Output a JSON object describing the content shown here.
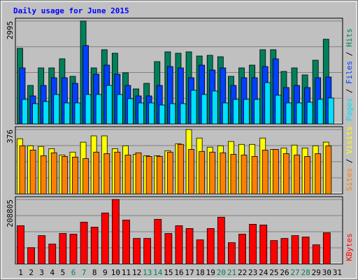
{
  "chart_data": [
    {
      "type": "bar",
      "title": "Daily usage for June 2015",
      "legend_separator": " / ",
      "ylim": [
        0,
        2995
      ],
      "yticks": [
        2995
      ],
      "series": [
        {
          "name": "Hits",
          "color": "#00805c",
          "values": [
            2200,
            1120,
            1630,
            1630,
            1895,
            1385,
            2995,
            1630,
            2160,
            2057,
            1487,
            1019,
            1181,
            1813,
            2098,
            2057,
            2098,
            1976,
            1996,
            1955,
            1385,
            1630,
            1711,
            2160,
            2160,
            1528,
            1630,
            1426,
            1854,
            2465,
            null
          ]
        },
        {
          "name": "Files",
          "color": "#0040ff",
          "values": [
            1630,
            815,
            1120,
            1344,
            1344,
            1181,
            2281,
            1446,
            1711,
            1446,
            1120,
            815,
            815,
            1120,
            1670,
            1630,
            1344,
            1711,
            1568,
            1630,
            1120,
            1344,
            1344,
            1670,
            1894,
            1059,
            1120,
            1059,
            1344,
            1365,
            null
          ]
        },
        {
          "name": "Pages",
          "color": "#00e0ff",
          "values": [
            713,
            590,
            652,
            856,
            611,
            611,
            856,
            856,
            1120,
            856,
            733,
            611,
            611,
            550,
            590,
            590,
            978,
            856,
            958,
            611,
            713,
            713,
            713,
            1202,
            835,
            611,
            611,
            631,
            713,
            754,
            null
          ]
        }
      ]
    },
    {
      "type": "bar",
      "legend_separator": " / ",
      "ylim": [
        0,
        376
      ],
      "yticks": [
        376
      ],
      "series": [
        {
          "name": "Visits",
          "color": "#ffff00",
          "values": [
            322,
            281,
            277,
            264,
            227,
            244,
            302,
            339,
            339,
            264,
            281,
            231,
            223,
            223,
            252,
            293,
            376,
            326,
            273,
            281,
            306,
            289,
            289,
            326,
            260,
            268,
            285,
            268,
            281,
            302,
            null
          ]
        },
        {
          "name": "Sites",
          "color": "#ff8000",
          "values": [
            281,
            256,
            223,
            240,
            219,
            215,
            206,
            244,
            235,
            244,
            227,
            240,
            219,
            219,
            244,
            289,
            260,
            248,
            244,
            240,
            231,
            227,
            219,
            256,
            260,
            235,
            227,
            219,
            235,
            281,
            null
          ]
        }
      ]
    },
    {
      "type": "bar",
      "ylim": [
        0,
        208805
      ],
      "yticks": [
        208805
      ],
      "categories": [
        "1",
        "2",
        "3",
        "4",
        "5",
        "6",
        "7",
        "8",
        "9",
        "10",
        "11",
        "12",
        "13",
        "14",
        "15",
        "16",
        "17",
        "18",
        "19",
        "20",
        "21",
        "22",
        "23",
        "24",
        "25",
        "26",
        "27",
        "28",
        "29",
        "30",
        "31"
      ],
      "category_colors": [
        "#000000",
        "#000000",
        "#000000",
        "#000000",
        "#000000",
        "#00805c",
        "#00805c",
        "#000000",
        "#000000",
        "#000000",
        "#000000",
        "#000000",
        "#00805c",
        "#00805c",
        "#000000",
        "#000000",
        "#000000",
        "#000000",
        "#000000",
        "#00805c",
        "#00805c",
        "#000000",
        "#000000",
        "#000000",
        "#000000",
        "#000000",
        "#00805c",
        "#00805c",
        "#000000",
        "#000000",
        "#000000"
      ],
      "series": [
        {
          "name": "KBytes",
          "color": "#ff0000",
          "values": [
            123930,
            52785,
            91800,
            64260,
            98685,
            96390,
            135405,
            119340,
            165240,
            208805,
            142290,
            82620,
            82620,
            144585,
            98685,
            123930,
            114750,
            78030,
            114750,
            151470,
            68850,
            96390,
            128520,
            126225,
            75735,
            82620,
            91800,
            87210,
            61965,
            100980,
            null
          ]
        }
      ]
    }
  ]
}
